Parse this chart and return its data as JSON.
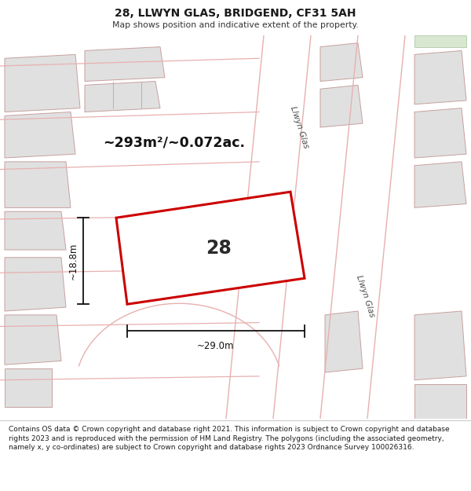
{
  "title": "28, LLWYN GLAS, BRIDGEND, CF31 5AH",
  "subtitle": "Map shows position and indicative extent of the property.",
  "footer_lines": [
    "Contains OS data © Crown copyright and database right 2021. This information is subject to Crown copyright and database rights 2023 and is reproduced with the permission of",
    "HM Land Registry. The polygons (including the associated geometry, namely x, y co-ordinates) are subject to Crown copyright and database rights 2023 Ordnance Survey",
    "100026316."
  ],
  "area_text": "~293m²/~0.072ac.",
  "width_text": "~29.0m",
  "height_text": "~18.8m",
  "house_number": "28",
  "map_bg": "#f2f2f2",
  "footer_bg": "#ffffff",
  "red_plot_color": "#cc0000",
  "street_label": "Llwyn Glas",
  "title_color": "#1a1a1a",
  "subtitle_color": "#333333",
  "block_fill": "#e0e0e0",
  "block_edge": "#c8a0a0",
  "road_color": "#e8b0b0",
  "dim_color": "#111111",
  "background_color": "#ffffff"
}
